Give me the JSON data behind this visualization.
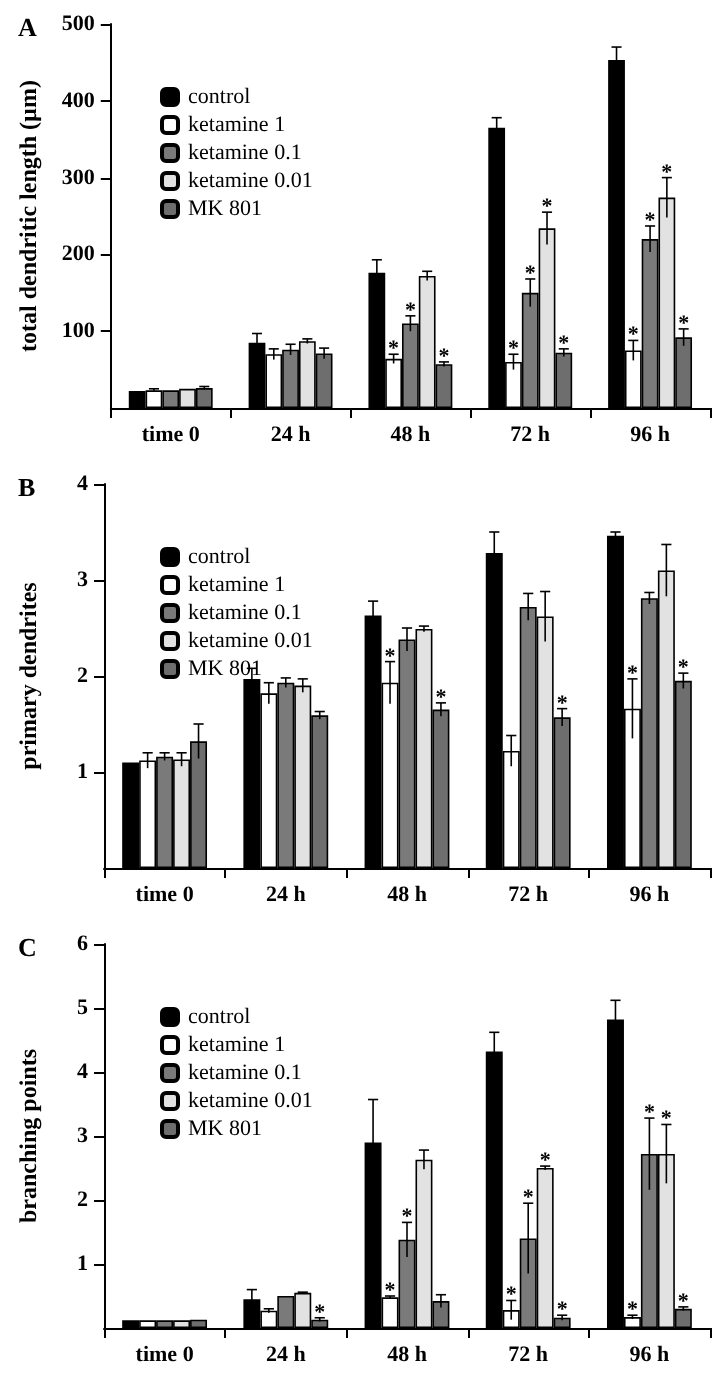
{
  "chart_data": [
    {
      "type": "bar",
      "title": "A",
      "ylabel": "total dendritic length (µm)",
      "categories": [
        "time 0",
        "24 h",
        "48 h",
        "72 h",
        "96 h"
      ],
      "ylim": [
        0,
        500
      ],
      "yticks": [
        100,
        200,
        300,
        400,
        500
      ],
      "legend": "top left",
      "grid": false,
      "series": [
        {
          "name": "control",
          "color": "#000000",
          "values": [
            22,
            85,
            176,
            365,
            453
          ],
          "errors": [
            null,
            12,
            17,
            13,
            17
          ]
        },
        {
          "name": "ketamine 1",
          "color": "#ffffff",
          "values": [
            23,
            70,
            64,
            60,
            75
          ],
          "errors": [
            2,
            7,
            6,
            10,
            13
          ],
          "value_labels": [
            null,
            null,
            "*",
            "*",
            "*"
          ]
        },
        {
          "name": "ketamine 0.1",
          "color": "#7a7a7a",
          "values": [
            23,
            76,
            110,
            150,
            220
          ],
          "errors": [
            null,
            7,
            10,
            18,
            17
          ],
          "value_labels": [
            null,
            null,
            "*",
            "*",
            "*"
          ]
        },
        {
          "name": "ketamine 0.01",
          "color": "#e2e2e2",
          "values": [
            25,
            87,
            172,
            234,
            274
          ],
          "errors": [
            null,
            3,
            6,
            21,
            26
          ],
          "value_labels": [
            null,
            null,
            null,
            "*",
            "*"
          ]
        },
        {
          "name": "MK 801",
          "color": "#6e6e6e",
          "values": [
            26,
            71,
            57,
            72,
            92
          ],
          "errors": [
            2,
            7,
            3,
            5,
            11
          ],
          "value_labels": [
            null,
            null,
            "*",
            "*",
            "*"
          ]
        }
      ]
    },
    {
      "type": "bar",
      "title": "B",
      "ylabel": "primary dendrites",
      "categories": [
        "time 0",
        "24 h",
        "48 h",
        "72 h",
        "96 h"
      ],
      "ylim": [
        0,
        4
      ],
      "yticks": [
        1,
        2,
        3,
        4
      ],
      "legend": "top left",
      "grid": false,
      "series": [
        {
          "name": "control",
          "color": "#000000",
          "values": [
            1.1,
            1.97,
            2.63,
            3.28,
            3.46
          ],
          "errors": [
            null,
            0.11,
            0.15,
            0.22,
            0.04
          ]
        },
        {
          "name": "ketamine 1",
          "color": "#ffffff",
          "values": [
            1.12,
            1.82,
            1.93,
            1.22,
            1.66
          ],
          "errors": [
            0.08,
            0.11,
            0.22,
            0.16,
            0.31
          ],
          "value_labels": [
            null,
            null,
            "*",
            null,
            "*"
          ]
        },
        {
          "name": "ketamine 0.1",
          "color": "#7a7a7a",
          "values": [
            1.16,
            1.93,
            2.38,
            2.72,
            2.81
          ],
          "errors": [
            0.04,
            0.05,
            0.12,
            0.14,
            0.06
          ]
        },
        {
          "name": "ketamine 0.01",
          "color": "#e2e2e2",
          "values": [
            1.13,
            1.9,
            2.49,
            2.62,
            3.1
          ],
          "errors": [
            0.07,
            0.07,
            0.03,
            0.26,
            0.27
          ]
        },
        {
          "name": "MK 801",
          "color": "#6e6e6e",
          "values": [
            1.32,
            1.59,
            1.65,
            1.57,
            1.95
          ],
          "errors": [
            0.18,
            0.04,
            0.07,
            0.09,
            0.08
          ],
          "value_labels": [
            null,
            null,
            "*",
            "*",
            "*"
          ]
        }
      ]
    },
    {
      "type": "bar",
      "title": "C",
      "ylabel": "branching points",
      "categories": [
        "time 0",
        "24 h",
        "48 h",
        "72 h",
        "96 h"
      ],
      "ylim": [
        0,
        6
      ],
      "yticks": [
        1,
        2,
        3,
        4,
        5,
        6
      ],
      "legend": "top left",
      "grid": false,
      "series": [
        {
          "name": "control",
          "color": "#000000",
          "values": [
            0.12,
            0.45,
            2.9,
            4.32,
            4.82
          ],
          "errors": [
            null,
            0.15,
            0.67,
            0.3,
            0.3
          ]
        },
        {
          "name": "ketamine 1",
          "color": "#ffffff",
          "values": [
            0.12,
            0.27,
            0.48,
            0.28,
            0.17
          ],
          "errors": [
            null,
            0.03,
            0.02,
            0.15,
            0.03
          ],
          "value_labels": [
            null,
            null,
            "*",
            "*",
            "*"
          ]
        },
        {
          "name": "ketamine 0.1",
          "color": "#7a7a7a",
          "values": [
            0.12,
            0.5,
            1.38,
            1.4,
            2.72
          ],
          "errors": [
            null,
            null,
            0.27,
            0.55,
            0.56
          ],
          "value_labels": [
            null,
            null,
            "*",
            "*",
            "*"
          ]
        },
        {
          "name": "ketamine 0.01",
          "color": "#e2e2e2",
          "values": [
            0.12,
            0.55,
            2.63,
            2.5,
            2.72
          ],
          "errors": [
            null,
            0.01,
            0.15,
            0.03,
            0.46
          ],
          "value_labels": [
            null,
            null,
            null,
            "*",
            "*"
          ]
        },
        {
          "name": "MK 801",
          "color": "#6e6e6e",
          "values": [
            0.13,
            0.13,
            0.42,
            0.16,
            0.3
          ],
          "errors": [
            null,
            0.03,
            0.1,
            0.04,
            0.03
          ],
          "value_labels": [
            null,
            "*",
            null,
            "*",
            "*"
          ]
        }
      ]
    }
  ]
}
